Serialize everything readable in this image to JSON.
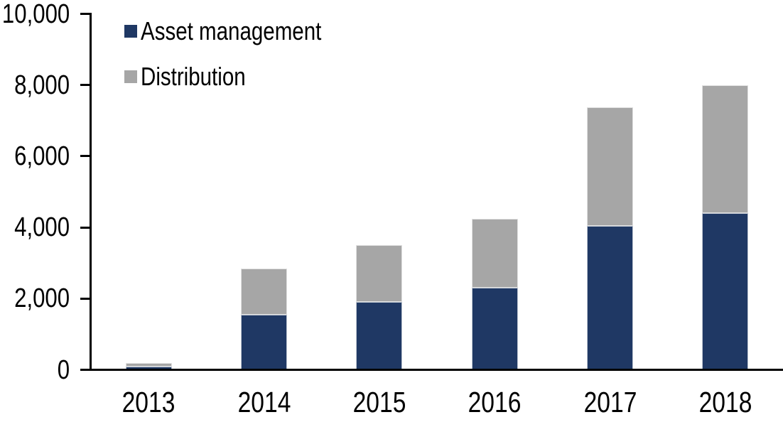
{
  "chart_data": {
    "type": "bar",
    "stacked": true,
    "title": "",
    "xlabel": "",
    "ylabel": "",
    "categories": [
      "2013",
      "2014",
      "2015",
      "2016",
      "2017",
      "2018"
    ],
    "series": [
      {
        "name": "Asset management",
        "color": "#1F3864",
        "values": [
          100,
          1550,
          1900,
          2310,
          4050,
          4400
        ]
      },
      {
        "name": "Distribution",
        "color": "#A6A6A6",
        "values": [
          100,
          1300,
          1600,
          1940,
          3330,
          3600
        ]
      }
    ],
    "ylim": [
      0,
      10000
    ],
    "ytick_interval": 2000,
    "ytick_labels": [
      "0",
      "2,000",
      "4,000",
      "6,000",
      "8,000",
      "10,000"
    ],
    "grid": false,
    "legend_position": "top-left",
    "axis_color": "#000000",
    "background_color": "#FFFFFF"
  }
}
